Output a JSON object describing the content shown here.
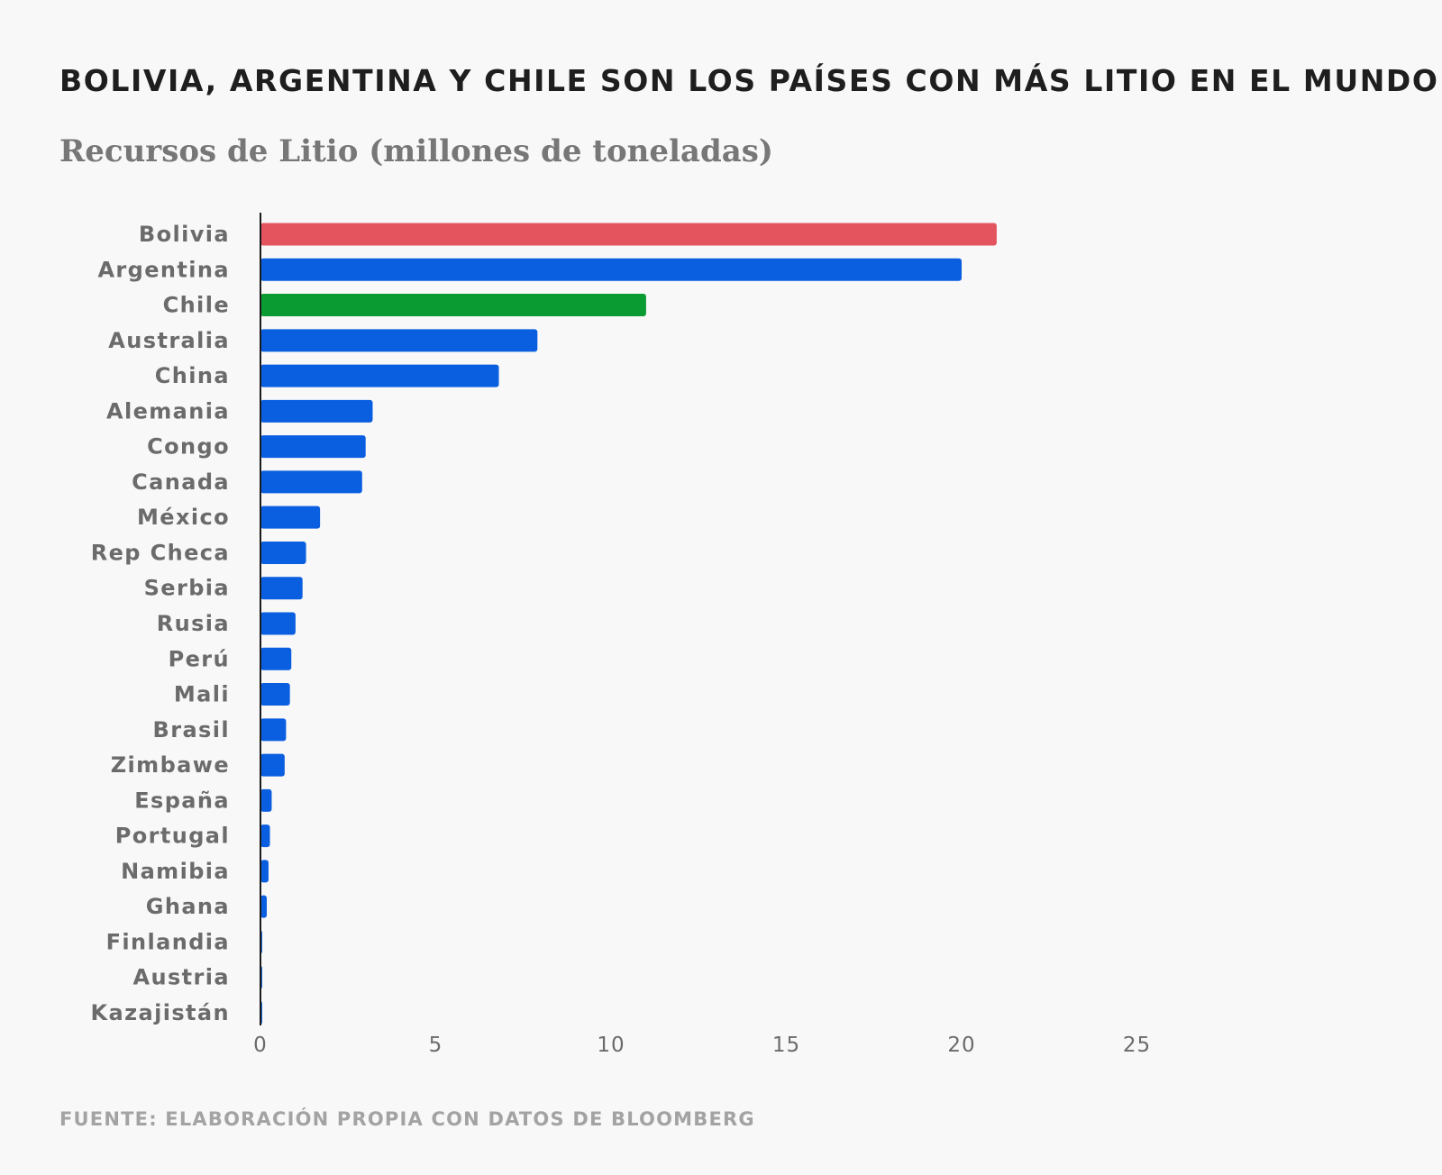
{
  "header": {
    "title": "BOLIVIA, ARGENTINA Y CHILE SON LOS PAÍSES CON MÁS LITIO EN EL MUNDO",
    "subtitle": "Recursos de Litio (millones de toneladas)"
  },
  "footer": {
    "source": "FUENTE: ELABORACIÓN PROPIA CON DATOS DE BLOOMBERG"
  },
  "chart_data": {
    "type": "bar",
    "orientation": "horizontal",
    "title": "BOLIVIA, ARGENTINA Y CHILE SON LOS PAÍSES CON MÁS LITIO EN EL MUNDO",
    "subtitle": "Recursos de Litio (millones de toneladas)",
    "xlabel": "",
    "ylabel": "",
    "xlim": [
      0,
      25
    ],
    "xticks": [
      0,
      5,
      10,
      15,
      20,
      25
    ],
    "grid": false,
    "categories": [
      "Bolivia",
      "Argentina",
      "Chile",
      "Australia",
      "China",
      "Alemania",
      "Congo",
      "Canada",
      "México",
      "Rep Checa",
      "Serbia",
      "Rusia",
      "Perú",
      "Mali",
      "Brasil",
      "Zimbawe",
      "España",
      "Portugal",
      "Namibia",
      "Ghana",
      "Finlandia",
      "Austria",
      "Kazajistán"
    ],
    "values": [
      21,
      20,
      11,
      7.9,
      6.8,
      3.2,
      3,
      2.9,
      1.7,
      1.3,
      1.2,
      1,
      0.88,
      0.84,
      0.73,
      0.69,
      0.32,
      0.27,
      0.23,
      0.18,
      0.05,
      0.05,
      0.05
    ],
    "colors": {
      "default": "#0a5ee0",
      "Bolivia": "#e3545e",
      "Chile": "#0a9b32"
    },
    "axis_color": "#1a1a1a"
  }
}
